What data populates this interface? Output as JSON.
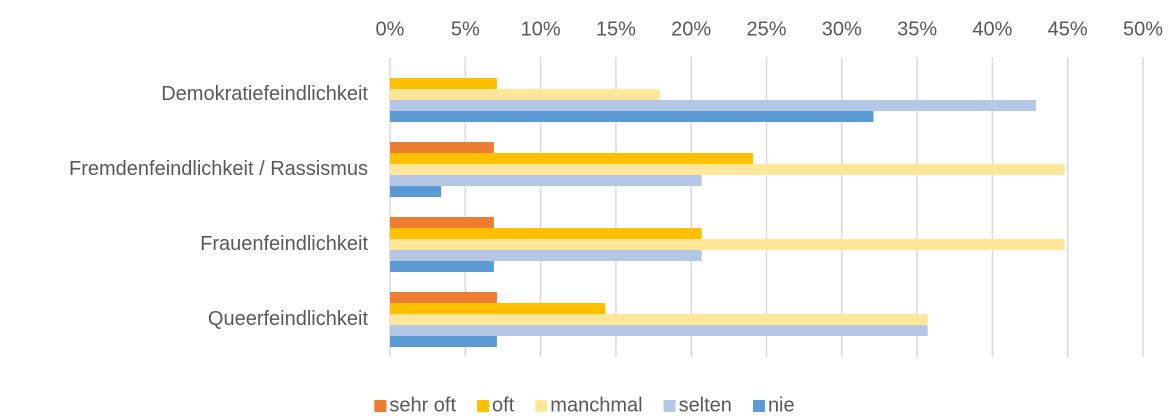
{
  "chart_data": {
    "type": "bar",
    "orientation": "horizontal",
    "categories": [
      "Demokratiefeindlichkeit",
      "Fremdenfeindlichkeit / Rassismus",
      "Frauenfeindlichkeit",
      "Queerfeindlichkeit"
    ],
    "series": [
      {
        "name": "sehr oft",
        "color": "#ED7D31",
        "values": [
          0,
          6.9,
          6.9,
          7.1
        ]
      },
      {
        "name": "oft",
        "color": "#FFC000",
        "values": [
          7.1,
          24.1,
          20.7,
          14.3
        ]
      },
      {
        "name": "manchmal",
        "color": "#FFE699",
        "values": [
          17.9,
          44.8,
          44.8,
          35.7
        ]
      },
      {
        "name": "selten",
        "color": "#B4C7E7",
        "values": [
          42.9,
          20.7,
          20.7,
          35.7
        ]
      },
      {
        "name": "nie",
        "color": "#5B9BD5",
        "values": [
          32.1,
          3.4,
          6.9,
          7.1
        ]
      }
    ],
    "xlim": [
      0,
      50
    ],
    "xticks": [
      {
        "value": 0,
        "label": "0%"
      },
      {
        "value": 5,
        "label": "5%"
      },
      {
        "value": 10,
        "label": "10%"
      },
      {
        "value": 15,
        "label": "15%"
      },
      {
        "value": 20,
        "label": "20%"
      },
      {
        "value": 25,
        "label": "25%"
      },
      {
        "value": 30,
        "label": "30%"
      },
      {
        "value": 35,
        "label": "35%"
      },
      {
        "value": 40,
        "label": "40%"
      },
      {
        "value": 45,
        "label": "45%"
      },
      {
        "value": 50,
        "label": "50%"
      }
    ],
    "grid": true,
    "legend": "bottom"
  }
}
